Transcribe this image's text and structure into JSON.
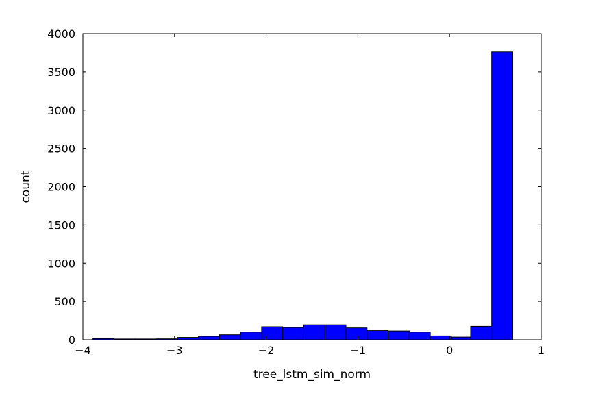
{
  "chart_data": {
    "type": "bar",
    "subtype": "histogram",
    "xlabel": "tree_lstm_sim_norm",
    "ylabel": "count",
    "xlim": [
      -4,
      1
    ],
    "ylim": [
      0,
      4000
    ],
    "xticks": [
      -4,
      -3,
      -2,
      -1,
      0,
      1
    ],
    "xtick_labels": [
      "−4",
      "−3",
      "−2",
      "−1",
      "0",
      "1"
    ],
    "yticks": [
      0,
      500,
      1000,
      1500,
      2000,
      2500,
      3000,
      3500,
      4000
    ],
    "ytick_labels": [
      "0",
      "500",
      "1000",
      "1500",
      "2000",
      "2500",
      "3000",
      "3500",
      "4000"
    ],
    "grid": false,
    "bar_color": "#0000ff",
    "bins": [
      {
        "x0": -3.89,
        "x1": -3.66,
        "count": 15
      },
      {
        "x0": -3.66,
        "x1": -3.43,
        "count": 10
      },
      {
        "x0": -3.43,
        "x1": -3.2,
        "count": 10
      },
      {
        "x0": -3.2,
        "x1": -2.97,
        "count": 12
      },
      {
        "x0": -2.97,
        "x1": -2.74,
        "count": 30
      },
      {
        "x0": -2.74,
        "x1": -2.51,
        "count": 45
      },
      {
        "x0": -2.51,
        "x1": -2.28,
        "count": 65
      },
      {
        "x0": -2.28,
        "x1": -2.05,
        "count": 100
      },
      {
        "x0": -2.05,
        "x1": -1.82,
        "count": 170
      },
      {
        "x0": -1.82,
        "x1": -1.59,
        "count": 160
      },
      {
        "x0": -1.59,
        "x1": -1.36,
        "count": 195
      },
      {
        "x0": -1.36,
        "x1": -1.13,
        "count": 195
      },
      {
        "x0": -1.13,
        "x1": -0.9,
        "count": 155
      },
      {
        "x0": -0.9,
        "x1": -0.67,
        "count": 120
      },
      {
        "x0": -0.67,
        "x1": -0.44,
        "count": 115
      },
      {
        "x0": -0.44,
        "x1": -0.21,
        "count": 100
      },
      {
        "x0": -0.21,
        "x1": 0.02,
        "count": 50
      },
      {
        "x0": 0.02,
        "x1": 0.23,
        "count": 35
      },
      {
        "x0": 0.23,
        "x1": 0.46,
        "count": 175
      },
      {
        "x0": 0.46,
        "x1": 0.69,
        "count": 3760
      }
    ]
  }
}
